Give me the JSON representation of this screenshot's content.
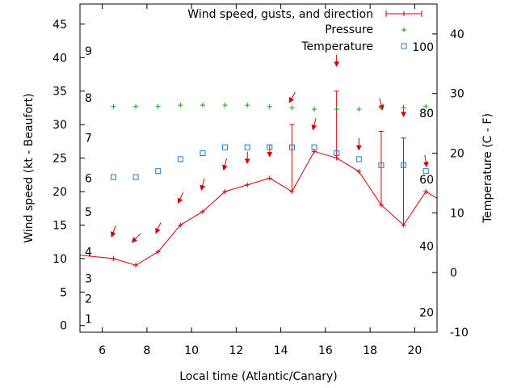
{
  "chart_data": {
    "type": "line",
    "xlabel": "Local time (Atlantic/Canary)",
    "ylabel_left": "Wind speed (kt - Beaufort)",
    "ylabel_right": "Temperature (C - F)",
    "xlim": [
      5,
      21
    ],
    "ylim_left": [
      -1,
      48
    ],
    "ylim_right": [
      -10,
      45
    ],
    "x_ticks": [
      "6",
      "8",
      "10",
      "12",
      "14",
      "16",
      "18",
      "20"
    ],
    "y_left_ticks": [
      "0",
      "5",
      "10",
      "15",
      "20",
      "25",
      "30",
      "35",
      "40",
      "45"
    ],
    "y_right_ticks": [
      "-10",
      "0",
      "10",
      "20",
      "30",
      "40"
    ],
    "beaufort_labels": [
      {
        "text": "1",
        "kt": 1
      },
      {
        "text": "2",
        "kt": 4
      },
      {
        "text": "3",
        "kt": 7
      },
      {
        "text": "4",
        "kt": 11
      },
      {
        "text": "5",
        "kt": 17
      },
      {
        "text": "6",
        "kt": 22
      },
      {
        "text": "7",
        "kt": 28
      },
      {
        "text": "8",
        "kt": 34
      },
      {
        "text": "9",
        "kt": 41
      }
    ],
    "fahrenheit_labels": [
      {
        "text": "20",
        "celsius": -6.7
      },
      {
        "text": "40",
        "celsius": 4.4
      },
      {
        "text": "60",
        "celsius": 15.6
      },
      {
        "text": "80",
        "celsius": 26.7
      },
      {
        "text": "100",
        "celsius": 37.8
      }
    ],
    "legend_position": "top-right",
    "colors": {
      "wind": "#cc0000",
      "pressure": "#00aa00",
      "temperature": "#1f78d0"
    },
    "series": [
      {
        "name": "Wind speed, gusts, and direction",
        "axis": "left",
        "style": "line-with-gust-bars",
        "points": [
          {
            "x": 5.0,
            "y": 10.5,
            "gust": null
          },
          {
            "x": 6.5,
            "y": 10.0,
            "gust": null
          },
          {
            "x": 7.5,
            "y": 9.0,
            "gust": null
          },
          {
            "x": 8.5,
            "y": 11.0,
            "gust": null
          },
          {
            "x": 9.5,
            "y": 15.0,
            "gust": null
          },
          {
            "x": 10.5,
            "y": 17.0,
            "gust": null
          },
          {
            "x": 11.5,
            "y": 20.0,
            "gust": null
          },
          {
            "x": 12.5,
            "y": 21.0,
            "gust": null
          },
          {
            "x": 13.5,
            "y": 22.0,
            "gust": null
          },
          {
            "x": 14.5,
            "y": 20.0,
            "gust": 30.0
          },
          {
            "x": 15.5,
            "y": 26.0,
            "gust": null
          },
          {
            "x": 16.5,
            "y": 25.0,
            "gust": 35.0
          },
          {
            "x": 17.5,
            "y": 23.0,
            "gust": null
          },
          {
            "x": 18.5,
            "y": 18.0,
            "gust": 29.0
          },
          {
            "x": 19.5,
            "y": 15.0,
            "gust": 28.0
          },
          {
            "x": 20.5,
            "y": 20.0,
            "gust": null
          },
          {
            "x": 21.0,
            "y": 19.0,
            "gust": null
          }
        ]
      },
      {
        "name": "Pressure",
        "axis": "left",
        "style": "plus-points",
        "points": [
          {
            "x": 6.5,
            "y": 32.7
          },
          {
            "x": 7.5,
            "y": 32.7
          },
          {
            "x": 8.5,
            "y": 32.7
          },
          {
            "x": 9.5,
            "y": 32.9
          },
          {
            "x": 10.5,
            "y": 32.9
          },
          {
            "x": 11.5,
            "y": 32.9
          },
          {
            "x": 12.5,
            "y": 32.9
          },
          {
            "x": 13.5,
            "y": 32.7
          },
          {
            "x": 14.5,
            "y": 32.5
          },
          {
            "x": 15.5,
            "y": 32.3
          },
          {
            "x": 16.5,
            "y": 32.3
          },
          {
            "x": 17.5,
            "y": 32.3
          },
          {
            "x": 18.5,
            "y": 32.5
          },
          {
            "x": 19.5,
            "y": 32.5
          },
          {
            "x": 20.5,
            "y": 32.7
          }
        ]
      },
      {
        "name": "Temperature",
        "axis": "right",
        "style": "square-points",
        "points": [
          {
            "x": 6.5,
            "y": 16
          },
          {
            "x": 7.5,
            "y": 16
          },
          {
            "x": 8.5,
            "y": 17
          },
          {
            "x": 9.5,
            "y": 19
          },
          {
            "x": 10.5,
            "y": 20
          },
          {
            "x": 11.5,
            "y": 21
          },
          {
            "x": 12.5,
            "y": 21
          },
          {
            "x": 13.5,
            "y": 21
          },
          {
            "x": 14.5,
            "y": 21
          },
          {
            "x": 15.5,
            "y": 21
          },
          {
            "x": 16.5,
            "y": 20
          },
          {
            "x": 17.5,
            "y": 19
          },
          {
            "x": 18.5,
            "y": 18
          },
          {
            "x": 19.5,
            "y": 18
          },
          {
            "x": 20.5,
            "y": 17
          }
        ]
      }
    ],
    "wind_direction_arrows": [
      {
        "x": 6.5,
        "y": 14,
        "angle_deg": 20
      },
      {
        "x": 7.5,
        "y": 13,
        "angle_deg": 45
      },
      {
        "x": 8.5,
        "y": 14.5,
        "angle_deg": 25
      },
      {
        "x": 9.5,
        "y": 19,
        "angle_deg": 25
      },
      {
        "x": 10.5,
        "y": 21,
        "angle_deg": 15
      },
      {
        "x": 11.5,
        "y": 24,
        "angle_deg": 15
      },
      {
        "x": 12.5,
        "y": 25,
        "angle_deg": 0
      },
      {
        "x": 13.5,
        "y": 26,
        "angle_deg": 0
      },
      {
        "x": 14.5,
        "y": 34,
        "angle_deg": 30
      },
      {
        "x": 15.5,
        "y": 30,
        "angle_deg": 15
      },
      {
        "x": 16.5,
        "y": 39.5,
        "angle_deg": 0
      },
      {
        "x": 17.5,
        "y": 27,
        "angle_deg": 0
      },
      {
        "x": 18.5,
        "y": 33,
        "angle_deg": -15
      },
      {
        "x": 19.5,
        "y": 32,
        "angle_deg": 0
      },
      {
        "x": 20.5,
        "y": 24.5,
        "angle_deg": -10
      }
    ]
  }
}
